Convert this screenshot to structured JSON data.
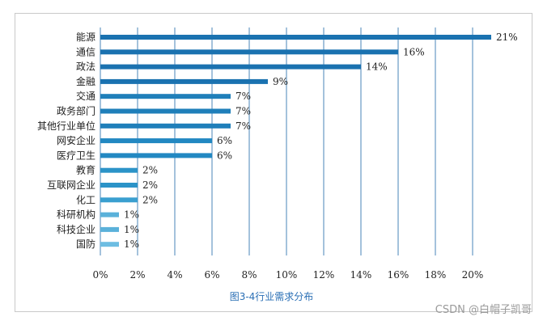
{
  "chart_data": {
    "type": "bar",
    "orientation": "horizontal",
    "categories": [
      "能源",
      "通信",
      "政法",
      "金融",
      "交通",
      "政务部门",
      "其他行业单位",
      "网安企业",
      "医疗卫生",
      "教育",
      "互联网企业",
      "化工",
      "科研机构",
      "科技企业",
      "国防"
    ],
    "values": [
      21,
      16,
      14,
      9,
      7,
      7,
      7,
      6,
      6,
      2,
      2,
      2,
      1,
      1,
      1
    ],
    "value_labels": [
      "21%",
      "16%",
      "14%",
      "9%",
      "7%",
      "7%",
      "7%",
      "6%",
      "6%",
      "2%",
      "2%",
      "2%",
      "1%",
      "1%",
      "1%"
    ],
    "xlim": [
      0,
      20
    ],
    "xticks": [
      "0%",
      "2%",
      "4%",
      "6%",
      "8%",
      "10%",
      "12%",
      "14%",
      "16%",
      "18%",
      "20%"
    ],
    "grid": "vertical",
    "colors": [
      "#1a72b0",
      "#1a72b0",
      "#1a72b0",
      "#1a72b0",
      "#1f7fba",
      "#1f7fba",
      "#1f7fba",
      "#2288c2",
      "#2288c2",
      "#2b93c8",
      "#2b93c8",
      "#3a9fd0",
      "#5ab1da",
      "#5ab1da",
      "#6dbde2"
    ]
  },
  "caption": "图3-4行业需求分布",
  "watermark": "CSDN @白帽子凯哥"
}
